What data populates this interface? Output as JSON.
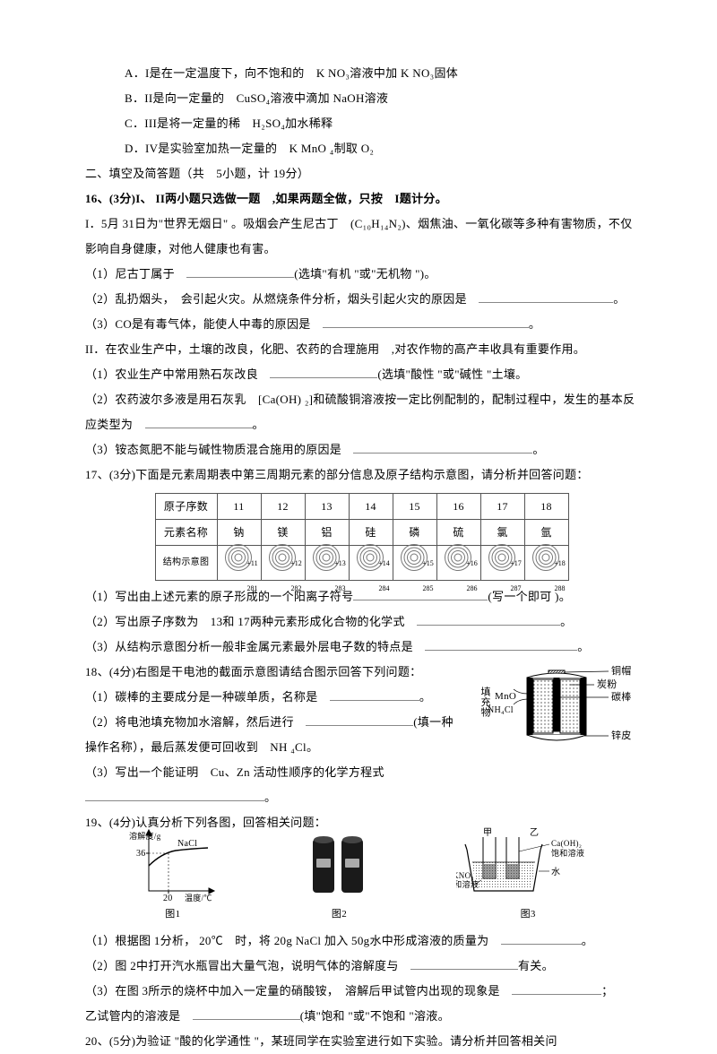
{
  "opt": {
    "A": "A．I是在一定温度下，向不饱和的　K NO₃溶液中加 K NO₃固体",
    "B": "B．II是向一定量的　CuSO₄溶液中滴加 NaOH溶液",
    "C": "C．III是将一定量的稀　H₂SO₄加水稀释",
    "D": "D．IV是实验室加热一定量的　K MnO ₄制取 O₂"
  },
  "section2": "二、填空及简答题（共　5小题，计 19分）",
  "q16": {
    "head": "16、(3分)I、 II两小题只选做一题　,如果两题全做，只按　I题计分。",
    "I1": "I．5月 31日为\"世界无烟日\" 。吸烟会产生尼古丁　(C₁₀H₁₄N₂)、烟焦油、一氧化碳等多种有害物质，不仅影响自身健康，对他人健康也有害。",
    "I1a": "（1）尼古丁属于　",
    "I1a2": "(选填\"有机 \"或\"无机物 \")。",
    "I1b": "（2）乱扔烟头，　会引起火灾。从燃烧条件分析，烟头引起火灾的原因是",
    "I1c": "（3）CO是有毒气体，能使人中毒的原因是",
    "II1": "II．在农业生产中，土壤的改良，化肥、农药的合理施用　,对农作物的高产丰收具有重要作用。",
    "II2": "（1）农业生产中常用熟石灰改良　",
    "II2b": "(选填\"酸性 \"或\"碱性 \"土壤。",
    "II3": "（2）农药波尔多液是用石灰乳　[Ca(OH) ₂]和硫酸铜溶液按一定比例配制的，配制过程中，发生的基本反应类型为",
    "II4": "（3）铵态氮肥不能与碱性物质混合施用的原因是"
  },
  "q17": {
    "head": "17、(3分)下面是元素周期表中第三周期元素的部分信息及原子结构示意图，请分析并回答问题：",
    "row1_h": "原子序数",
    "row2_h": "元素名称",
    "row3_h": "结构示意图",
    "num": [
      "11",
      "12",
      "13",
      "14",
      "15",
      "16",
      "17",
      "18"
    ],
    "name": [
      "钠",
      "镁",
      "铝",
      "硅",
      "磷",
      "硫",
      "氯",
      "氩"
    ],
    "shells": [
      "281",
      "282",
      "283",
      "284",
      "285",
      "286",
      "287",
      "288"
    ],
    "a": "（1）写出由上述元素的原子形成的一个阳离子符号",
    "a2": "(写一个即可 )。",
    "b": "（2）写出原子序数为　13和 17两种元素形成化合物的化学式",
    "c": "（3）从结构示意图分析一般非金属元素最外层电子数的特点是"
  },
  "q18": {
    "head": "18、(4分)右图是干电池的截面示意图请结合图示回答下列问题：",
    "a": "（1）碳棒的主要成分是一种碳单质，名称是",
    "b1": "（2）将电池填充物加水溶解，然后进行",
    "b2": "(填一种",
    "b3": "操作名称），最后蒸发便可回收到　NH ₄Cl。",
    "c": "（3）写出一个能证明　Cu、Zn 活动性顺序的化学方程式",
    "labels": [
      "铜帽",
      "炭粉",
      "碳棒",
      "锌皮"
    ],
    "fill1": "MnO",
    "fill2": "NH₄Cl",
    "side": "填充物"
  },
  "q19": {
    "head": "19、(4分)认真分析下列各图，回答相关问题：",
    "fig1_y": "溶解度/g",
    "fig1_36": "36",
    "fig1_x": "温度/℃",
    "fig1_20": "20",
    "fig1_salt": "NaCl",
    "fig1_cap": "图1",
    "fig2_cap": "图2",
    "fig3_a": "甲",
    "fig3_b": "乙",
    "fig3_c": "Ca(OH)₂",
    "fig3_d": "饱和溶液",
    "fig3_e": "KNO₃",
    "fig3_f": "饱和溶液",
    "fig3_g": "水",
    "fig3_cap": "图3",
    "a": "（1）根据图 1分析， 20℃　时，将 20g NaCl 加入 50g水中形成溶液的质量为",
    "b": "（2）图 2中打开汽水瓶冒出大量气泡，说明气体的溶解度与",
    "b2": "有关。",
    "c": "（3）在图 3所示的烧杯中加入一定量的硝酸铵，　溶解后甲试管内出现的现象是",
    "c2": "；",
    "d1": "乙试管内的溶液是",
    "d2": "(填\"饱和 \"或\"不饱和 \"溶液。"
  },
  "q20": "20、(5分)为验证 \"酸的化学通性 \"，某班同学在实验室进行如下实验。请分析并回答相关问"
}
